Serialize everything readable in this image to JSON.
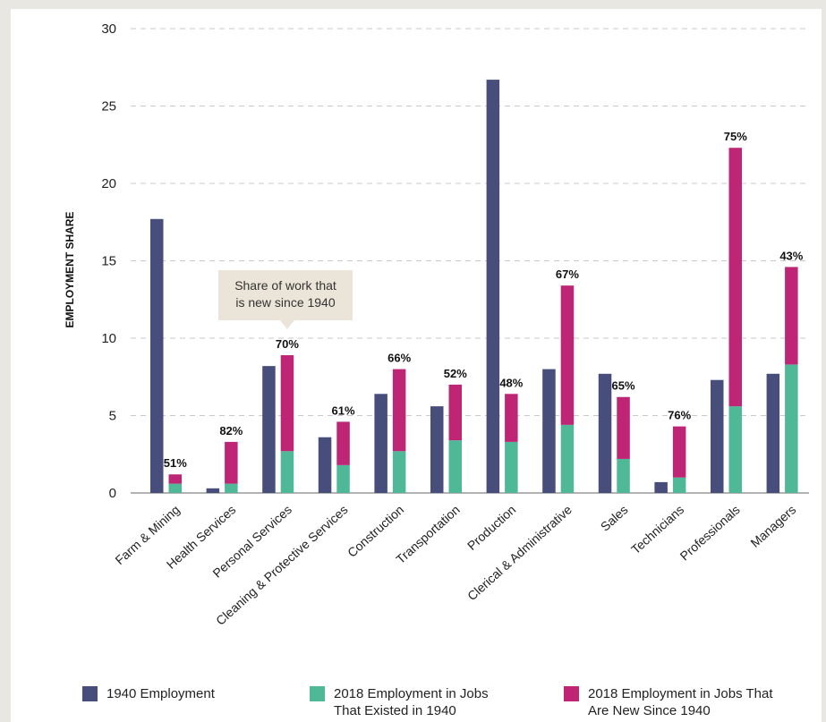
{
  "chart_data": {
    "type": "bar",
    "ylabel": "EMPLOYMENT SHARE",
    "ylim": [
      0,
      30
    ],
    "yticks": [
      "0",
      "5",
      "10",
      "15",
      "20",
      "25",
      "30"
    ],
    "grid": true,
    "categories": [
      "Farm & Mining",
      "Health Services",
      "Personal Services",
      "Cleaning & Protective Services",
      "Construction",
      "Transportation",
      "Production",
      "Clerical & Administrative",
      "Sales",
      "Technicians",
      "Professionals",
      "Managers"
    ],
    "series": [
      {
        "name": "1940 Employment",
        "color": "#474e7c",
        "values": [
          17.7,
          0.3,
          8.2,
          3.6,
          6.4,
          5.6,
          26.7,
          8.0,
          7.7,
          0.7,
          7.3,
          7.7
        ]
      },
      {
        "name": "2018 Employment in Jobs\nThat Existed in 1940",
        "color": "#4fb897",
        "values": [
          0.6,
          0.6,
          2.7,
          1.8,
          2.7,
          3.4,
          3.3,
          4.4,
          2.2,
          1.0,
          5.6,
          8.3
        ]
      },
      {
        "name": "2018 Employment in Jobs That\nAre New Since 1940",
        "color": "#bf2575",
        "values": [
          0.6,
          2.7,
          6.2,
          2.8,
          5.3,
          3.6,
          3.1,
          9.0,
          4.0,
          3.3,
          16.7,
          6.3
        ]
      }
    ],
    "annotations": [
      "51%",
      "82%",
      "70%",
      "61%",
      "66%",
      "52%",
      "48%",
      "67%",
      "65%",
      "76%",
      "75%",
      "43%"
    ],
    "callout": "Share of work that\nis new since 1940",
    "legend_position": "bottom"
  }
}
